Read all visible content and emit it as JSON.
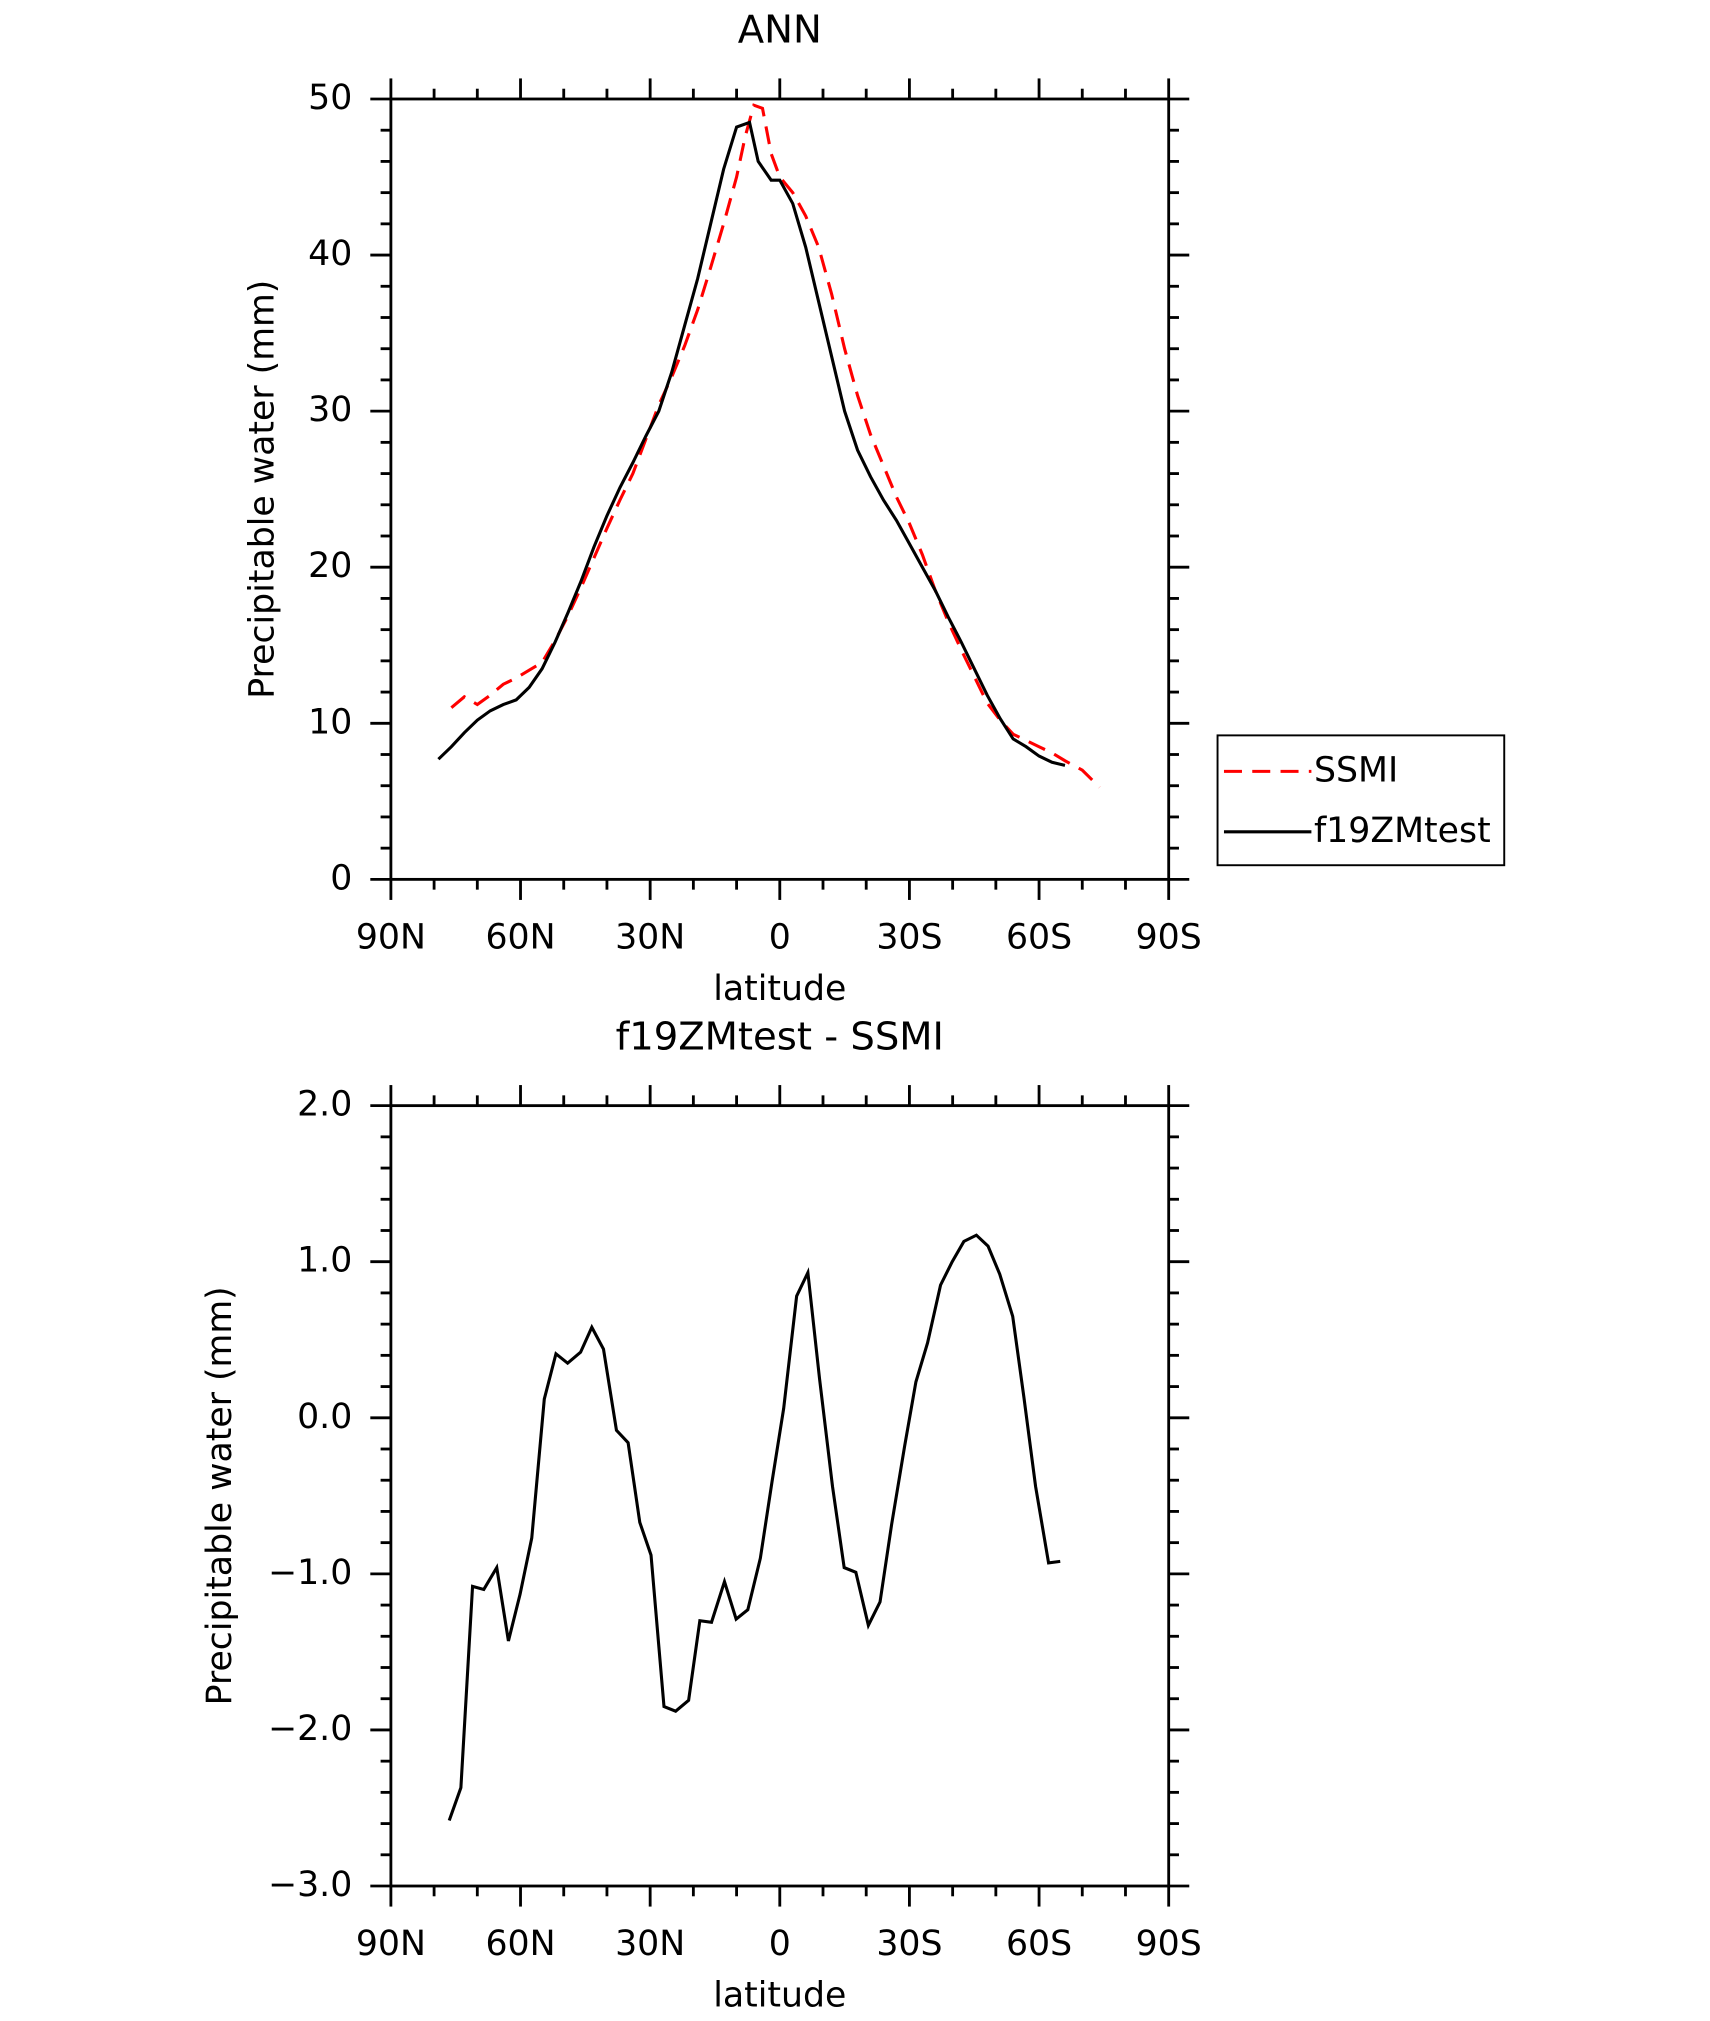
{
  "chart_data": [
    {
      "type": "line",
      "title": "ANN",
      "xlabel": "latitude",
      "ylabel": "Precipitable water (mm)",
      "xlim": [
        90,
        -90
      ],
      "xticks": [
        {
          "value": 90,
          "label": "90N"
        },
        {
          "value": 60,
          "label": "60N"
        },
        {
          "value": 30,
          "label": "30N"
        },
        0,
        {
          "value": -30,
          "label": "30S"
        },
        {
          "value": -60,
          "label": "60S"
        },
        {
          "value": -90,
          "label": "90S"
        }
      ],
      "ylim": [
        0,
        50
      ],
      "yticks": [
        0,
        10,
        20,
        30,
        40,
        50
      ],
      "legend": "right",
      "series": [
        {
          "name": "SSMI",
          "color": "#ff0000",
          "line_style": "dashed",
          "x": [
            76,
            73,
            70,
            67,
            64,
            61,
            58,
            55,
            52,
            49,
            46,
            43,
            40,
            37,
            34,
            31,
            28,
            25,
            22,
            19,
            16,
            13,
            10,
            8,
            6,
            4,
            2,
            0,
            -3,
            -6,
            -9,
            -12,
            -15,
            -18,
            -21,
            -24,
            -27,
            -30,
            -33,
            -36,
            -39,
            -42,
            -45,
            -48,
            -51,
            -54,
            -57,
            -60,
            -63,
            -66,
            -70,
            -74
          ],
          "values": [
            11.0,
            11.7,
            11.2,
            11.8,
            12.5,
            12.9,
            13.4,
            13.9,
            15.3,
            16.9,
            18.7,
            20.6,
            22.5,
            24.3,
            26.0,
            28.2,
            30.4,
            32.2,
            34.2,
            36.5,
            39.2,
            42.0,
            45.0,
            47.6,
            49.6,
            49.4,
            46.5,
            45.0,
            44.0,
            42.5,
            40.5,
            37.5,
            34.0,
            31.0,
            28.5,
            26.5,
            24.5,
            22.8,
            20.8,
            18.5,
            16.5,
            14.7,
            13.0,
            11.3,
            10.2,
            9.3,
            8.9,
            8.5,
            8.1,
            7.6,
            7.0,
            5.9
          ]
        },
        {
          "name": "f19ZMtest",
          "color": "#000000",
          "line_style": "solid",
          "x": [
            79,
            76,
            73,
            70,
            67,
            64,
            61,
            58,
            55,
            52,
            49,
            46,
            43,
            40,
            37,
            34,
            31,
            28,
            25,
            22,
            19,
            16,
            13,
            10,
            7,
            5,
            2,
            0,
            -3,
            -6,
            -9,
            -12,
            -15,
            -18,
            -21,
            -24,
            -27,
            -30,
            -33,
            -36,
            -39,
            -42,
            -45,
            -48,
            -51,
            -54,
            -57,
            -60,
            -63,
            -66
          ],
          "values": [
            7.7,
            8.5,
            9.4,
            10.2,
            10.8,
            11.2,
            11.5,
            12.3,
            13.5,
            15.2,
            17.1,
            19.1,
            21.3,
            23.3,
            25.1,
            26.7,
            28.4,
            30.0,
            32.5,
            35.5,
            38.5,
            42.0,
            45.5,
            48.2,
            48.5,
            46.0,
            44.8,
            44.8,
            43.3,
            40.5,
            37.0,
            33.5,
            30.0,
            27.5,
            25.8,
            24.3,
            23.0,
            21.5,
            20.0,
            18.5,
            16.8,
            15.2,
            13.5,
            11.8,
            10.3,
            9.0,
            8.5,
            7.9,
            7.5,
            7.3
          ]
        }
      ]
    },
    {
      "type": "line",
      "title": "f19ZMtest - SSMI",
      "xlabel": "latitude",
      "ylabel": "Precipitable water (mm)",
      "xlim": [
        90,
        -90
      ],
      "xticks": [
        {
          "value": 90,
          "label": "90N"
        },
        {
          "value": 60,
          "label": "60N"
        },
        {
          "value": 30,
          "label": "30N"
        },
        0,
        {
          "value": -30,
          "label": "30S"
        },
        {
          "value": -60,
          "label": "60S"
        },
        {
          "value": -90,
          "label": "90S"
        }
      ],
      "ylim": [
        -3,
        2
      ],
      "yticks": [
        {
          "value": -3,
          "label": "−3.0"
        },
        {
          "value": -2,
          "label": "−2.0"
        },
        {
          "value": -1,
          "label": "−1.0"
        },
        {
          "value": 0,
          "label": "0.0"
        },
        {
          "value": 1,
          "label": "1.0"
        },
        {
          "value": 2,
          "label": "2.0"
        }
      ],
      "series": [
        {
          "color": "#000000",
          "line_style": "solid",
          "x": [
            76.5,
            73.8,
            71.1,
            68.5,
            65.5,
            62.8,
            60.1,
            57.4,
            54.5,
            51.8,
            49.1,
            46.1,
            43.5,
            40.8,
            37.8,
            35.1,
            32.4,
            29.8,
            26.8,
            24.1,
            21.1,
            18.5,
            15.8,
            12.8,
            10.1,
            7.4,
            4.5,
            1.8,
            -0.9,
            -3.9,
            -6.5,
            -9.2,
            -12.2,
            -14.9,
            -17.6,
            -20.5,
            -23.2,
            -25.9,
            -28.9,
            -31.5,
            -34.2,
            -37.2,
            -39.9,
            -42.6,
            -45.5,
            -48.2,
            -50.9,
            -53.9,
            -56.5,
            -59.2,
            -62.2,
            -64.9
          ],
          "values": [
            -2.58,
            -2.37,
            -1.08,
            -1.1,
            -0.96,
            -1.43,
            -1.13,
            -0.77,
            0.12,
            0.41,
            0.35,
            0.42,
            0.58,
            0.44,
            -0.08,
            -0.16,
            -0.67,
            -0.88,
            -1.85,
            -1.88,
            -1.81,
            -1.3,
            -1.31,
            -1.05,
            -1.29,
            -1.23,
            -0.9,
            -0.41,
            0.06,
            0.78,
            0.93,
            0.25,
            -0.44,
            -0.96,
            -0.99,
            -1.33,
            -1.18,
            -0.68,
            -0.18,
            0.23,
            0.48,
            0.85,
            1.0,
            1.13,
            1.17,
            1.1,
            0.92,
            0.65,
            0.13,
            -0.44,
            -0.93,
            -0.92
          ]
        }
      ]
    }
  ]
}
